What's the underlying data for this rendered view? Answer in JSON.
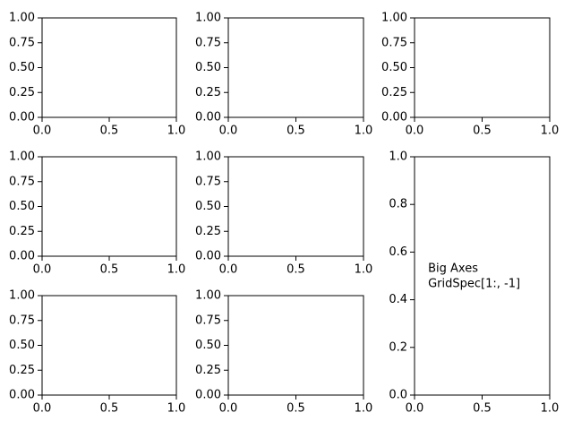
{
  "chart_data": [
    {
      "type": "blank",
      "xlim": [
        0,
        1
      ],
      "ylim": [
        0,
        1
      ],
      "xticks": [
        {
          "value": 0,
          "label": "0.0"
        },
        {
          "value": 0.5,
          "label": "0.5"
        },
        {
          "value": 1,
          "label": "1.0"
        }
      ],
      "yticks": [
        {
          "value": 0,
          "label": "0.00"
        },
        {
          "value": 0.25,
          "label": "0.25"
        },
        {
          "value": 0.5,
          "label": "0.50"
        },
        {
          "value": 0.75,
          "label": "0.75"
        },
        {
          "value": 1,
          "label": "1.00"
        }
      ]
    },
    {
      "type": "blank",
      "xlim": [
        0,
        1
      ],
      "ylim": [
        0,
        1
      ],
      "xticks": [
        {
          "value": 0,
          "label": "0.0"
        },
        {
          "value": 0.5,
          "label": "0.5"
        },
        {
          "value": 1,
          "label": "1.0"
        }
      ],
      "yticks": [
        {
          "value": 0,
          "label": "0.00"
        },
        {
          "value": 0.25,
          "label": "0.25"
        },
        {
          "value": 0.5,
          "label": "0.50"
        },
        {
          "value": 0.75,
          "label": "0.75"
        },
        {
          "value": 1,
          "label": "1.00"
        }
      ]
    },
    {
      "type": "blank",
      "xlim": [
        0,
        1
      ],
      "ylim": [
        0,
        1
      ],
      "xticks": [
        {
          "value": 0,
          "label": "0.0"
        },
        {
          "value": 0.5,
          "label": "0.5"
        },
        {
          "value": 1,
          "label": "1.0"
        }
      ],
      "yticks": [
        {
          "value": 0,
          "label": "0.00"
        },
        {
          "value": 0.25,
          "label": "0.25"
        },
        {
          "value": 0.5,
          "label": "0.50"
        },
        {
          "value": 0.75,
          "label": "0.75"
        },
        {
          "value": 1,
          "label": "1.00"
        }
      ]
    },
    {
      "type": "blank",
      "xlim": [
        0,
        1
      ],
      "ylim": [
        0,
        1
      ],
      "xticks": [
        {
          "value": 0,
          "label": "0.0"
        },
        {
          "value": 0.5,
          "label": "0.5"
        },
        {
          "value": 1,
          "label": "1.0"
        }
      ],
      "yticks": [
        {
          "value": 0,
          "label": "0.00"
        },
        {
          "value": 0.25,
          "label": "0.25"
        },
        {
          "value": 0.5,
          "label": "0.50"
        },
        {
          "value": 0.75,
          "label": "0.75"
        },
        {
          "value": 1,
          "label": "1.00"
        }
      ]
    },
    {
      "type": "blank",
      "xlim": [
        0,
        1
      ],
      "ylim": [
        0,
        1
      ],
      "xticks": [
        {
          "value": 0,
          "label": "0.0"
        },
        {
          "value": 0.5,
          "label": "0.5"
        },
        {
          "value": 1,
          "label": "1.0"
        }
      ],
      "yticks": [
        {
          "value": 0,
          "label": "0.00"
        },
        {
          "value": 0.25,
          "label": "0.25"
        },
        {
          "value": 0.5,
          "label": "0.50"
        },
        {
          "value": 0.75,
          "label": "0.75"
        },
        {
          "value": 1,
          "label": "1.00"
        }
      ]
    },
    {
      "type": "blank",
      "xlim": [
        0,
        1
      ],
      "ylim": [
        0,
        1
      ],
      "xticks": [
        {
          "value": 0,
          "label": "0.0"
        },
        {
          "value": 0.5,
          "label": "0.5"
        },
        {
          "value": 1,
          "label": "1.0"
        }
      ],
      "yticks": [
        {
          "value": 0,
          "label": "0.00"
        },
        {
          "value": 0.25,
          "label": "0.25"
        },
        {
          "value": 0.5,
          "label": "0.50"
        },
        {
          "value": 0.75,
          "label": "0.75"
        },
        {
          "value": 1,
          "label": "1.00"
        }
      ]
    },
    {
      "type": "blank",
      "xlim": [
        0,
        1
      ],
      "ylim": [
        0,
        1
      ],
      "xticks": [
        {
          "value": 0,
          "label": "0.0"
        },
        {
          "value": 0.5,
          "label": "0.5"
        },
        {
          "value": 1,
          "label": "1.0"
        }
      ],
      "yticks": [
        {
          "value": 0,
          "label": "0.00"
        },
        {
          "value": 0.25,
          "label": "0.25"
        },
        {
          "value": 0.5,
          "label": "0.50"
        },
        {
          "value": 0.75,
          "label": "0.75"
        },
        {
          "value": 1,
          "label": "1.00"
        }
      ]
    },
    {
      "type": "blank",
      "xlim": [
        0,
        1
      ],
      "ylim": [
        0,
        1
      ],
      "xticks": [
        {
          "value": 0,
          "label": "0.0"
        },
        {
          "value": 0.5,
          "label": "0.5"
        },
        {
          "value": 1,
          "label": "1.0"
        }
      ],
      "yticks": [
        {
          "value": 0,
          "label": "0.0"
        },
        {
          "value": 0.2,
          "label": "0.2"
        },
        {
          "value": 0.4,
          "label": "0.4"
        },
        {
          "value": 0.6,
          "label": "0.6"
        },
        {
          "value": 0.8,
          "label": "0.8"
        },
        {
          "value": 1,
          "label": "1.0"
        }
      ],
      "annotation": [
        "Big Axes",
        "GridSpec[1:, -1]"
      ]
    }
  ]
}
